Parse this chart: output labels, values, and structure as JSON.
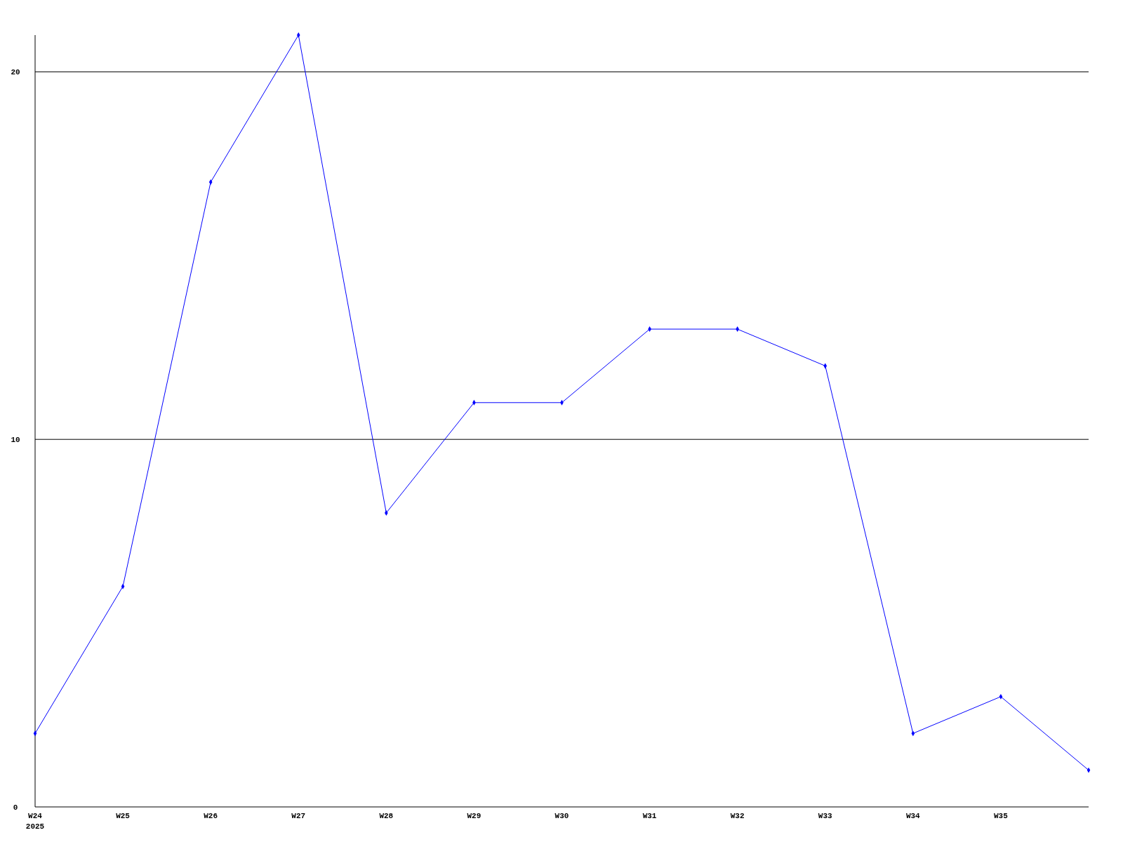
{
  "chart_data": {
    "type": "line",
    "categories": [
      "W24\n2025",
      "W25",
      "W26",
      "W27",
      "W28",
      "W29",
      "W30",
      "W31",
      "W32",
      "W33",
      "W34",
      "W35",
      null
    ],
    "series": [
      {
        "color": "#0000ff",
        "values": [
          2,
          6,
          17,
          21,
          8,
          11,
          11,
          13,
          13,
          12,
          2,
          3,
          1
        ]
      }
    ],
    "ylim": [
      0,
      21
    ],
    "yticks": [
      0,
      10,
      20
    ],
    "grid": "y",
    "marker": "diamond",
    "line_style": "solid"
  }
}
